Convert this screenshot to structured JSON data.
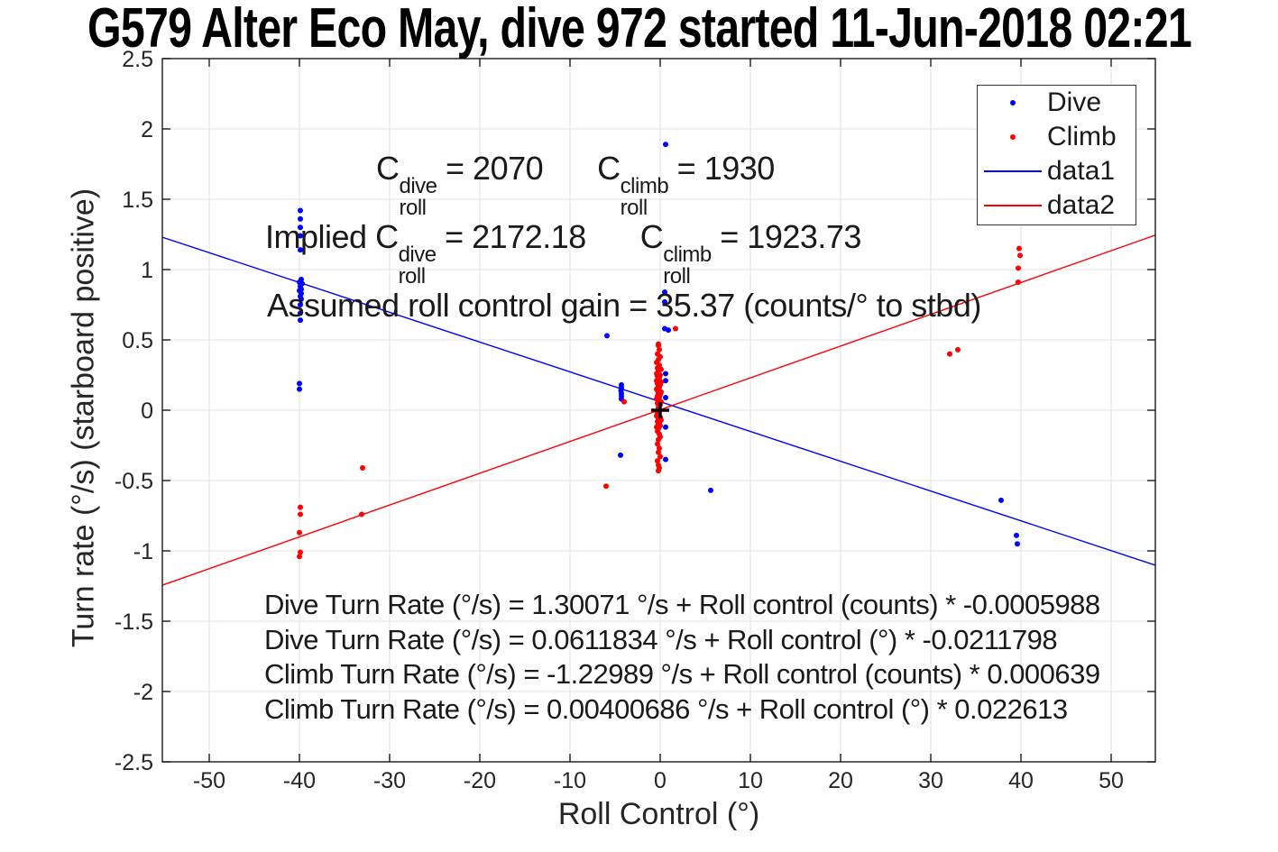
{
  "title": "G579 Alter Eco May, dive 972 started 11-Jun-2018 02:21",
  "chart_data": {
    "type": "scatter",
    "title": "G579 Alter Eco May, dive 972 started 11-Jun-2018 02:21",
    "xlabel": "Roll Control (°)",
    "ylabel": "Turn rate (°/s) (starboard positive)",
    "xlim": [
      -55.2,
      54.9
    ],
    "ylim": [
      -2.5,
      2.5
    ],
    "xticks": [
      -50,
      -40,
      -30,
      -20,
      -10,
      0,
      10,
      20,
      30,
      40,
      50
    ],
    "yticks": [
      -2.5,
      -2,
      -1.5,
      -1,
      -0.5,
      0,
      0.5,
      1,
      1.5,
      2,
      2.5
    ],
    "grid": true,
    "grid_color": "#e2e2e2",
    "axis_color": "#1a1a1a",
    "dive_color": "#0000ff",
    "climb_color": "#ff0000",
    "origin_marker": {
      "x": 0,
      "y": 0,
      "symbol": "+",
      "color": "#000000"
    },
    "legend": {
      "position": "top-right",
      "entries": [
        {
          "label": "Dive",
          "marker": "dot",
          "color": "#0000ff"
        },
        {
          "label": "Climb",
          "marker": "dot",
          "color": "#ff0000"
        },
        {
          "label": "data1",
          "marker": "line",
          "color": "#0000ff"
        },
        {
          "label": "data2",
          "marker": "line",
          "color": "#ff0000"
        }
      ]
    },
    "series": [
      {
        "name": "Dive",
        "type": "scatter",
        "color": "#0000ff",
        "points": [
          [
            -39.9,
            1.42
          ],
          [
            -39.9,
            1.36
          ],
          [
            -39.9,
            1.3
          ],
          [
            -39.9,
            1.24
          ],
          [
            -39.9,
            1.14
          ],
          [
            -39.8,
            0.93
          ],
          [
            -40.0,
            0.91
          ],
          [
            -39.7,
            0.9
          ],
          [
            -39.9,
            0.88
          ],
          [
            -39.8,
            0.86
          ],
          [
            -40.0,
            0.85
          ],
          [
            -39.8,
            0.83
          ],
          [
            -39.9,
            0.81
          ],
          [
            -39.8,
            0.79
          ],
          [
            -39.9,
            0.75
          ],
          [
            -39.9,
            0.69
          ],
          [
            -39.9,
            0.64
          ],
          [
            -40.0,
            0.19
          ],
          [
            -40.0,
            0.15
          ],
          [
            -5.9,
            0.53
          ],
          [
            -4.3,
            0.18
          ],
          [
            -4.3,
            0.16
          ],
          [
            -4.35,
            0.14
          ],
          [
            -4.3,
            0.12
          ],
          [
            -4.3,
            0.1
          ],
          [
            -4.3,
            0.08
          ],
          [
            -4.4,
            -0.32
          ],
          [
            0.6,
            1.89
          ],
          [
            0.5,
            0.84
          ],
          [
            0.5,
            0.77
          ],
          [
            0.5,
            0.58
          ],
          [
            0.9,
            0.57
          ],
          [
            0.6,
            0.26
          ],
          [
            0.6,
            0.21
          ],
          [
            0.6,
            0.09
          ],
          [
            0.6,
            -0.12
          ],
          [
            0.6,
            -0.35
          ],
          [
            5.6,
            -0.57
          ],
          [
            37.8,
            -0.64
          ],
          [
            39.5,
            -0.89
          ],
          [
            39.6,
            -0.95
          ]
        ]
      },
      {
        "name": "Climb",
        "type": "scatter",
        "color": "#ff0000",
        "points": [
          [
            -0.2,
            0.46
          ],
          [
            -0.1,
            0.43
          ],
          [
            -0.3,
            0.4
          ],
          [
            0.0,
            0.38
          ],
          [
            -0.2,
            0.36
          ],
          [
            -0.4,
            0.34
          ],
          [
            -0.1,
            0.32
          ],
          [
            -0.3,
            0.3
          ],
          [
            0.1,
            0.29
          ],
          [
            -0.2,
            0.28
          ],
          [
            -0.4,
            0.26
          ],
          [
            0.0,
            0.25
          ],
          [
            -0.3,
            0.24
          ],
          [
            -0.1,
            0.23
          ],
          [
            -0.2,
            0.22
          ],
          [
            -0.4,
            0.21
          ],
          [
            0.1,
            0.2
          ],
          [
            -0.3,
            0.19
          ],
          [
            0.0,
            0.18
          ],
          [
            -0.2,
            0.17
          ],
          [
            -0.1,
            0.16
          ],
          [
            -0.4,
            0.15
          ],
          [
            -0.3,
            0.14
          ],
          [
            0.1,
            0.13
          ],
          [
            -0.2,
            0.12
          ],
          [
            0.0,
            0.11
          ],
          [
            -0.3,
            0.1
          ],
          [
            -0.1,
            0.09
          ],
          [
            -0.4,
            0.08
          ],
          [
            -0.2,
            0.07
          ],
          [
            0.1,
            0.06
          ],
          [
            -0.3,
            0.05
          ],
          [
            0.0,
            0.04
          ],
          [
            -0.2,
            0.02
          ],
          [
            -0.1,
            0.0
          ],
          [
            -0.3,
            -0.02
          ],
          [
            -0.4,
            -0.04
          ],
          [
            0.0,
            -0.05
          ],
          [
            -0.2,
            -0.06
          ],
          [
            0.1,
            -0.07
          ],
          [
            -0.3,
            -0.08
          ],
          [
            -0.1,
            -0.09
          ],
          [
            -0.2,
            -0.1
          ],
          [
            0.0,
            -0.11
          ],
          [
            -0.4,
            -0.12
          ],
          [
            -0.2,
            -0.13
          ],
          [
            -0.3,
            -0.15
          ],
          [
            -0.1,
            -0.17
          ],
          [
            0.0,
            -0.19
          ],
          [
            -0.2,
            -0.21
          ],
          [
            -0.3,
            -0.24
          ],
          [
            -0.1,
            -0.27
          ],
          [
            -0.2,
            -0.3
          ],
          [
            0.0,
            -0.33
          ],
          [
            -0.3,
            -0.36
          ],
          [
            -0.2,
            -0.39
          ],
          [
            -0.1,
            -0.41
          ],
          [
            -0.2,
            -0.43
          ],
          [
            -39.9,
            -0.69
          ],
          [
            -39.9,
            -0.74
          ],
          [
            -40.0,
            -0.87
          ],
          [
            -39.9,
            -1.01
          ],
          [
            -40.0,
            -1.04
          ],
          [
            -33.0,
            -0.41
          ],
          [
            -33.1,
            -0.74
          ],
          [
            -6.0,
            -0.54
          ],
          [
            -4.0,
            0.06
          ],
          [
            -0.2,
            0.47
          ],
          [
            1.7,
            0.58
          ],
          [
            32.1,
            0.4
          ],
          [
            33.0,
            0.43
          ],
          [
            39.8,
            1.15
          ],
          [
            39.9,
            1.1
          ],
          [
            39.7,
            1.01
          ],
          [
            39.7,
            0.91
          ]
        ]
      },
      {
        "name": "data1",
        "type": "line",
        "color": "#0000ff",
        "points": [
          [
            -55.2,
            1.23
          ],
          [
            54.9,
            -1.102
          ]
        ]
      },
      {
        "name": "data2",
        "type": "line",
        "color": "#ff0000",
        "points": [
          [
            -55.2,
            -1.244
          ],
          [
            54.9,
            1.245
          ]
        ]
      }
    ],
    "annotations": {
      "line1": {
        "items": [
          {
            "base": "C",
            "sup": "dive",
            "sub": "roll",
            "value": " = 2070"
          },
          {
            "base": "C",
            "sup": "climb",
            "sub": "roll",
            "value": " = 1930"
          }
        ]
      },
      "line2": {
        "prefix": "Implied ",
        "items": [
          {
            "base": "C",
            "sup": "dive",
            "sub": "roll",
            "value": " = 2172.18"
          },
          {
            "base": "C",
            "sup": "climb",
            "sub": "roll",
            "value": " = 1923.73"
          }
        ]
      },
      "line3": "Assumed roll control gain = 35.37 (counts/° to stbd)"
    },
    "equations": [
      "Dive Turn Rate (°/s) = 1.30071 °/s + Roll control (counts) * -0.0005988",
      "Dive Turn Rate (°/s) = 0.0611834 °/s + Roll control (°) * -0.0211798",
      "Climb Turn Rate (°/s) = -1.22989 °/s + Roll control (counts) * 0.000639",
      "Climb Turn Rate (°/s) = 0.00400686 °/s + Roll control (°) * 0.022613"
    ]
  }
}
